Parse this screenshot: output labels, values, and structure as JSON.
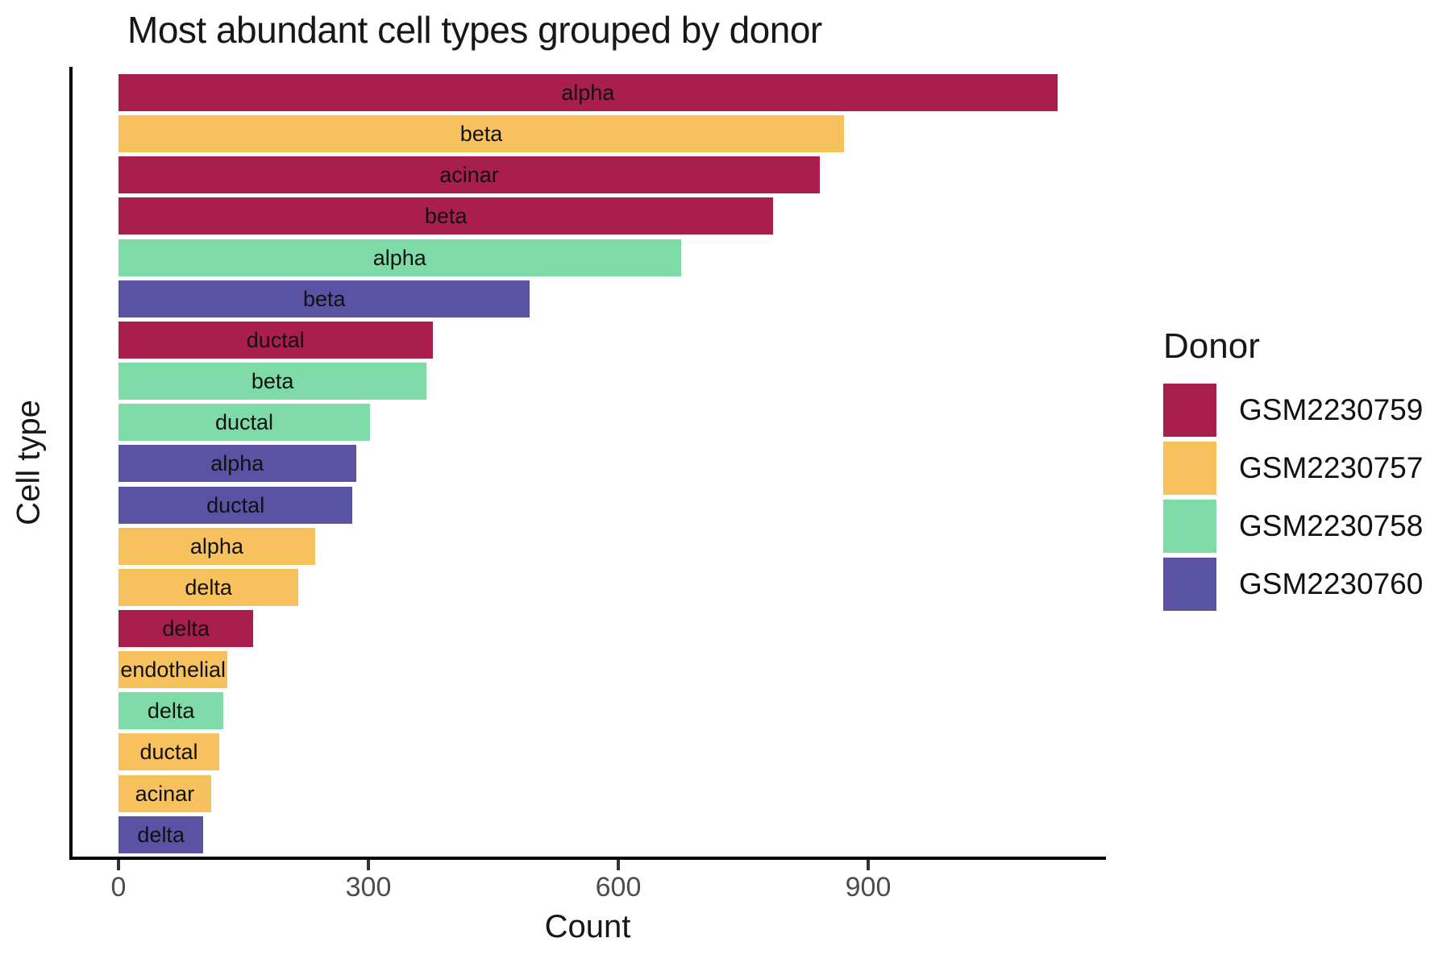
{
  "chart_data": {
    "type": "bar",
    "orientation": "horizontal",
    "title": "Most abundant cell types grouped by donor",
    "xlabel": "Count",
    "ylabel": "Cell type",
    "xlim": [
      0,
      1183
    ],
    "x_ticks": [
      0,
      300,
      600,
      900
    ],
    "grid": false,
    "legend_title": "Donor",
    "legend_position": "right",
    "donor_colors": {
      "GSM2230759": "#A81E4D",
      "GSM2230757": "#F7C25E",
      "GSM2230758": "#7EDBA8",
      "GSM2230760": "#5A53A4"
    },
    "legend_items": [
      {
        "label": "GSM2230759",
        "color": "#A81E4D"
      },
      {
        "label": "GSM2230757",
        "color": "#F7C25E"
      },
      {
        "label": "GSM2230758",
        "color": "#7EDBA8"
      },
      {
        "label": "GSM2230760",
        "color": "#5A53A4"
      }
    ],
    "bars": [
      {
        "cell_type": "alpha",
        "donor": "GSM2230759",
        "count": 1127
      },
      {
        "cell_type": "beta",
        "donor": "GSM2230757",
        "count": 871
      },
      {
        "cell_type": "acinar",
        "donor": "GSM2230759",
        "count": 842
      },
      {
        "cell_type": "beta",
        "donor": "GSM2230759",
        "count": 786
      },
      {
        "cell_type": "alpha",
        "donor": "GSM2230758",
        "count": 675
      },
      {
        "cell_type": "beta",
        "donor": "GSM2230760",
        "count": 494
      },
      {
        "cell_type": "ductal",
        "donor": "GSM2230759",
        "count": 377
      },
      {
        "cell_type": "beta",
        "donor": "GSM2230758",
        "count": 370
      },
      {
        "cell_type": "ductal",
        "donor": "GSM2230758",
        "count": 302
      },
      {
        "cell_type": "alpha",
        "donor": "GSM2230760",
        "count": 285
      },
      {
        "cell_type": "ductal",
        "donor": "GSM2230760",
        "count": 281
      },
      {
        "cell_type": "alpha",
        "donor": "GSM2230757",
        "count": 236
      },
      {
        "cell_type": "delta",
        "donor": "GSM2230757",
        "count": 216
      },
      {
        "cell_type": "delta",
        "donor": "GSM2230759",
        "count": 162
      },
      {
        "cell_type": "endothelial",
        "donor": "GSM2230757",
        "count": 131
      },
      {
        "cell_type": "delta",
        "donor": "GSM2230758",
        "count": 126
      },
      {
        "cell_type": "ductal",
        "donor": "GSM2230757",
        "count": 121
      },
      {
        "cell_type": "acinar",
        "donor": "GSM2230757",
        "count": 111
      },
      {
        "cell_type": "delta",
        "donor": "GSM2230760",
        "count": 102
      }
    ]
  }
}
